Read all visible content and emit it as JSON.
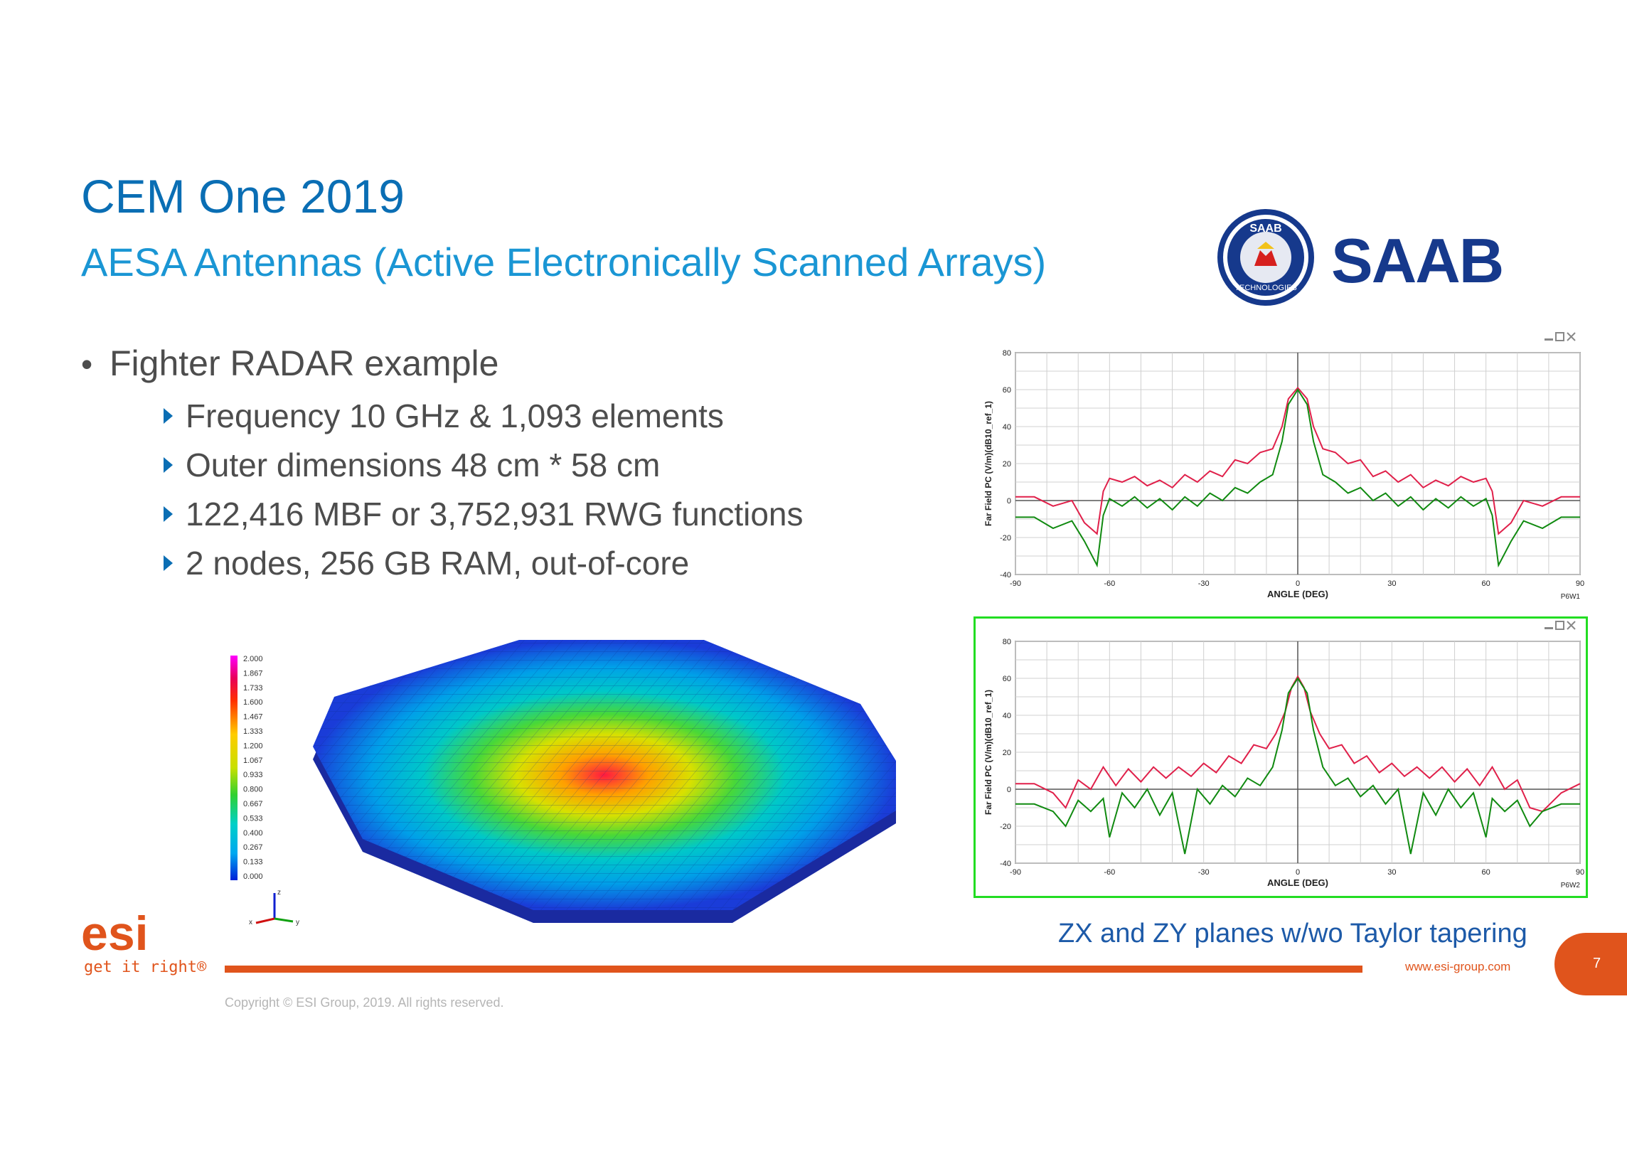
{
  "slide": {
    "title": "CEM One 2019",
    "subtitle": "AESA Antennas (Active Electronically Scanned Arrays)",
    "bullet_main": "Fighter RADAR example",
    "sub_bullets": [
      "Frequency 10 GHz & 1,093 elements",
      "Outer dimensions 48 cm * 58 cm",
      "122,416 MBF or 3,752,931 RWG functions",
      "2 nodes, 256 GB RAM, out-of-core"
    ],
    "caption": "ZX and ZY planes w/wo Taylor tapering",
    "tagline": "get it right®",
    "url": "www.esi-group.com",
    "page_number": "7",
    "copyright": "Copyright © ESI Group, 2019. All rights reserved.",
    "saab_logo_text": "SAAB",
    "saab_badge_top": "SAAB",
    "saab_badge_bottom": "TECHNOLOGIES",
    "esi_logo_text": "esi"
  },
  "colors": {
    "title": "#0a6eb4",
    "subtitle": "#1a96d4",
    "accent_orange": "#e0541c",
    "saab_blue": "#16398c",
    "series_red": "#e0204a",
    "series_green": "#108a10",
    "highlight_frame": "#22dd22"
  },
  "legend": {
    "ticks": [
      "2.000",
      "1.867",
      "1.733",
      "1.600",
      "1.467",
      "1.333",
      "1.200",
      "1.067",
      "0.933",
      "0.800",
      "0.667",
      "0.533",
      "0.400",
      "0.267",
      "0.133",
      "0.000"
    ],
    "axis_letters": [
      "z",
      "x",
      "y"
    ]
  },
  "chart_data": [
    {
      "type": "line",
      "name": "P6W1",
      "xlabel": "ANGLE (DEG)",
      "ylabel": "Far Field PC (V/m)(dB10_ref_1)",
      "xlim": [
        -90,
        90
      ],
      "ylim": [
        -40,
        80
      ],
      "x_ticks": [
        -90,
        -60,
        -30,
        0,
        30,
        60,
        90
      ],
      "y_ticks": [
        -40,
        -20,
        0,
        20,
        40,
        60,
        80
      ],
      "grid": true,
      "series": [
        {
          "color": "#e0204a",
          "x": [
            -90,
            -84,
            -78,
            -72,
            -68,
            -64,
            -62,
            -60,
            -56,
            -52,
            -48,
            -44,
            -40,
            -36,
            -32,
            -28,
            -24,
            -20,
            -16,
            -12,
            -8,
            -5,
            -3,
            0,
            3,
            5,
            8,
            12,
            16,
            20,
            24,
            28,
            32,
            36,
            40,
            44,
            48,
            52,
            56,
            60,
            62,
            64,
            68,
            72,
            78,
            84,
            90
          ],
          "y": [
            2,
            2,
            -3,
            0,
            -12,
            -18,
            5,
            12,
            10,
            13,
            8,
            11,
            7,
            14,
            10,
            16,
            13,
            22,
            20,
            26,
            28,
            40,
            55,
            61,
            55,
            40,
            28,
            26,
            20,
            22,
            13,
            16,
            10,
            14,
            7,
            11,
            8,
            13,
            10,
            12,
            5,
            -18,
            -12,
            0,
            -3,
            2,
            2
          ]
        },
        {
          "color": "#108a10",
          "x": [
            -90,
            -84,
            -78,
            -72,
            -68,
            -64,
            -62,
            -60,
            -56,
            -52,
            -48,
            -44,
            -40,
            -36,
            -32,
            -28,
            -24,
            -20,
            -16,
            -12,
            -8,
            -5,
            -3,
            0,
            3,
            5,
            8,
            12,
            16,
            20,
            24,
            28,
            32,
            36,
            40,
            44,
            48,
            52,
            56,
            60,
            62,
            64,
            68,
            72,
            78,
            84,
            90
          ],
          "y": [
            -9,
            -9,
            -15,
            -11,
            -22,
            -35,
            -8,
            1,
            -3,
            2,
            -4,
            1,
            -5,
            2,
            -3,
            4,
            0,
            7,
            4,
            10,
            14,
            32,
            52,
            60,
            52,
            32,
            14,
            10,
            4,
            7,
            0,
            4,
            -3,
            2,
            -5,
            1,
            -4,
            2,
            -3,
            1,
            -8,
            -35,
            -22,
            -11,
            -15,
            -9,
            -9
          ]
        }
      ]
    },
    {
      "type": "line",
      "name": "P6W2",
      "xlabel": "ANGLE (DEG)",
      "ylabel": "Far Field PC (V/m)(dB10_ref_1)",
      "xlim": [
        -90,
        90
      ],
      "ylim": [
        -40,
        80
      ],
      "x_ticks": [
        -90,
        -60,
        -30,
        0,
        30,
        60,
        90
      ],
      "y_ticks": [
        -40,
        -20,
        0,
        20,
        40,
        60,
        80
      ],
      "grid": true,
      "series": [
        {
          "color": "#e0204a",
          "x": [
            -90,
            -84,
            -78,
            -74,
            -70,
            -66,
            -62,
            -58,
            -54,
            -50,
            -46,
            -42,
            -38,
            -34,
            -30,
            -26,
            -22,
            -18,
            -14,
            -10,
            -7,
            -4,
            -2,
            0,
            2,
            4,
            7,
            10,
            14,
            18,
            22,
            26,
            30,
            34,
            38,
            42,
            46,
            50,
            54,
            58,
            62,
            66,
            70,
            74,
            78,
            84,
            90
          ],
          "y": [
            3,
            3,
            -2,
            -10,
            5,
            0,
            12,
            2,
            11,
            4,
            12,
            6,
            12,
            7,
            14,
            9,
            18,
            14,
            24,
            22,
            30,
            42,
            55,
            61,
            55,
            42,
            30,
            22,
            24,
            14,
            18,
            9,
            14,
            7,
            12,
            6,
            12,
            4,
            11,
            2,
            12,
            0,
            5,
            -10,
            -12,
            -2,
            3
          ]
        },
        {
          "color": "#108a10",
          "x": [
            -90,
            -84,
            -78,
            -74,
            -70,
            -66,
            -62,
            -60,
            -56,
            -52,
            -48,
            -44,
            -40,
            -36,
            -32,
            -28,
            -24,
            -20,
            -16,
            -12,
            -8,
            -5,
            -3,
            0,
            3,
            5,
            8,
            12,
            16,
            20,
            24,
            28,
            32,
            36,
            40,
            44,
            48,
            52,
            56,
            60,
            62,
            66,
            70,
            74,
            78,
            84,
            90
          ],
          "y": [
            -8,
            -8,
            -12,
            -20,
            -6,
            -12,
            -5,
            -26,
            -2,
            -10,
            0,
            -14,
            -2,
            -35,
            0,
            -8,
            2,
            -4,
            6,
            2,
            12,
            32,
            52,
            60,
            52,
            32,
            12,
            2,
            6,
            -4,
            2,
            -8,
            0,
            -35,
            -2,
            -14,
            0,
            -10,
            -2,
            -26,
            -5,
            -12,
            -6,
            -20,
            -12,
            -8,
            -8
          ]
        }
      ]
    }
  ]
}
